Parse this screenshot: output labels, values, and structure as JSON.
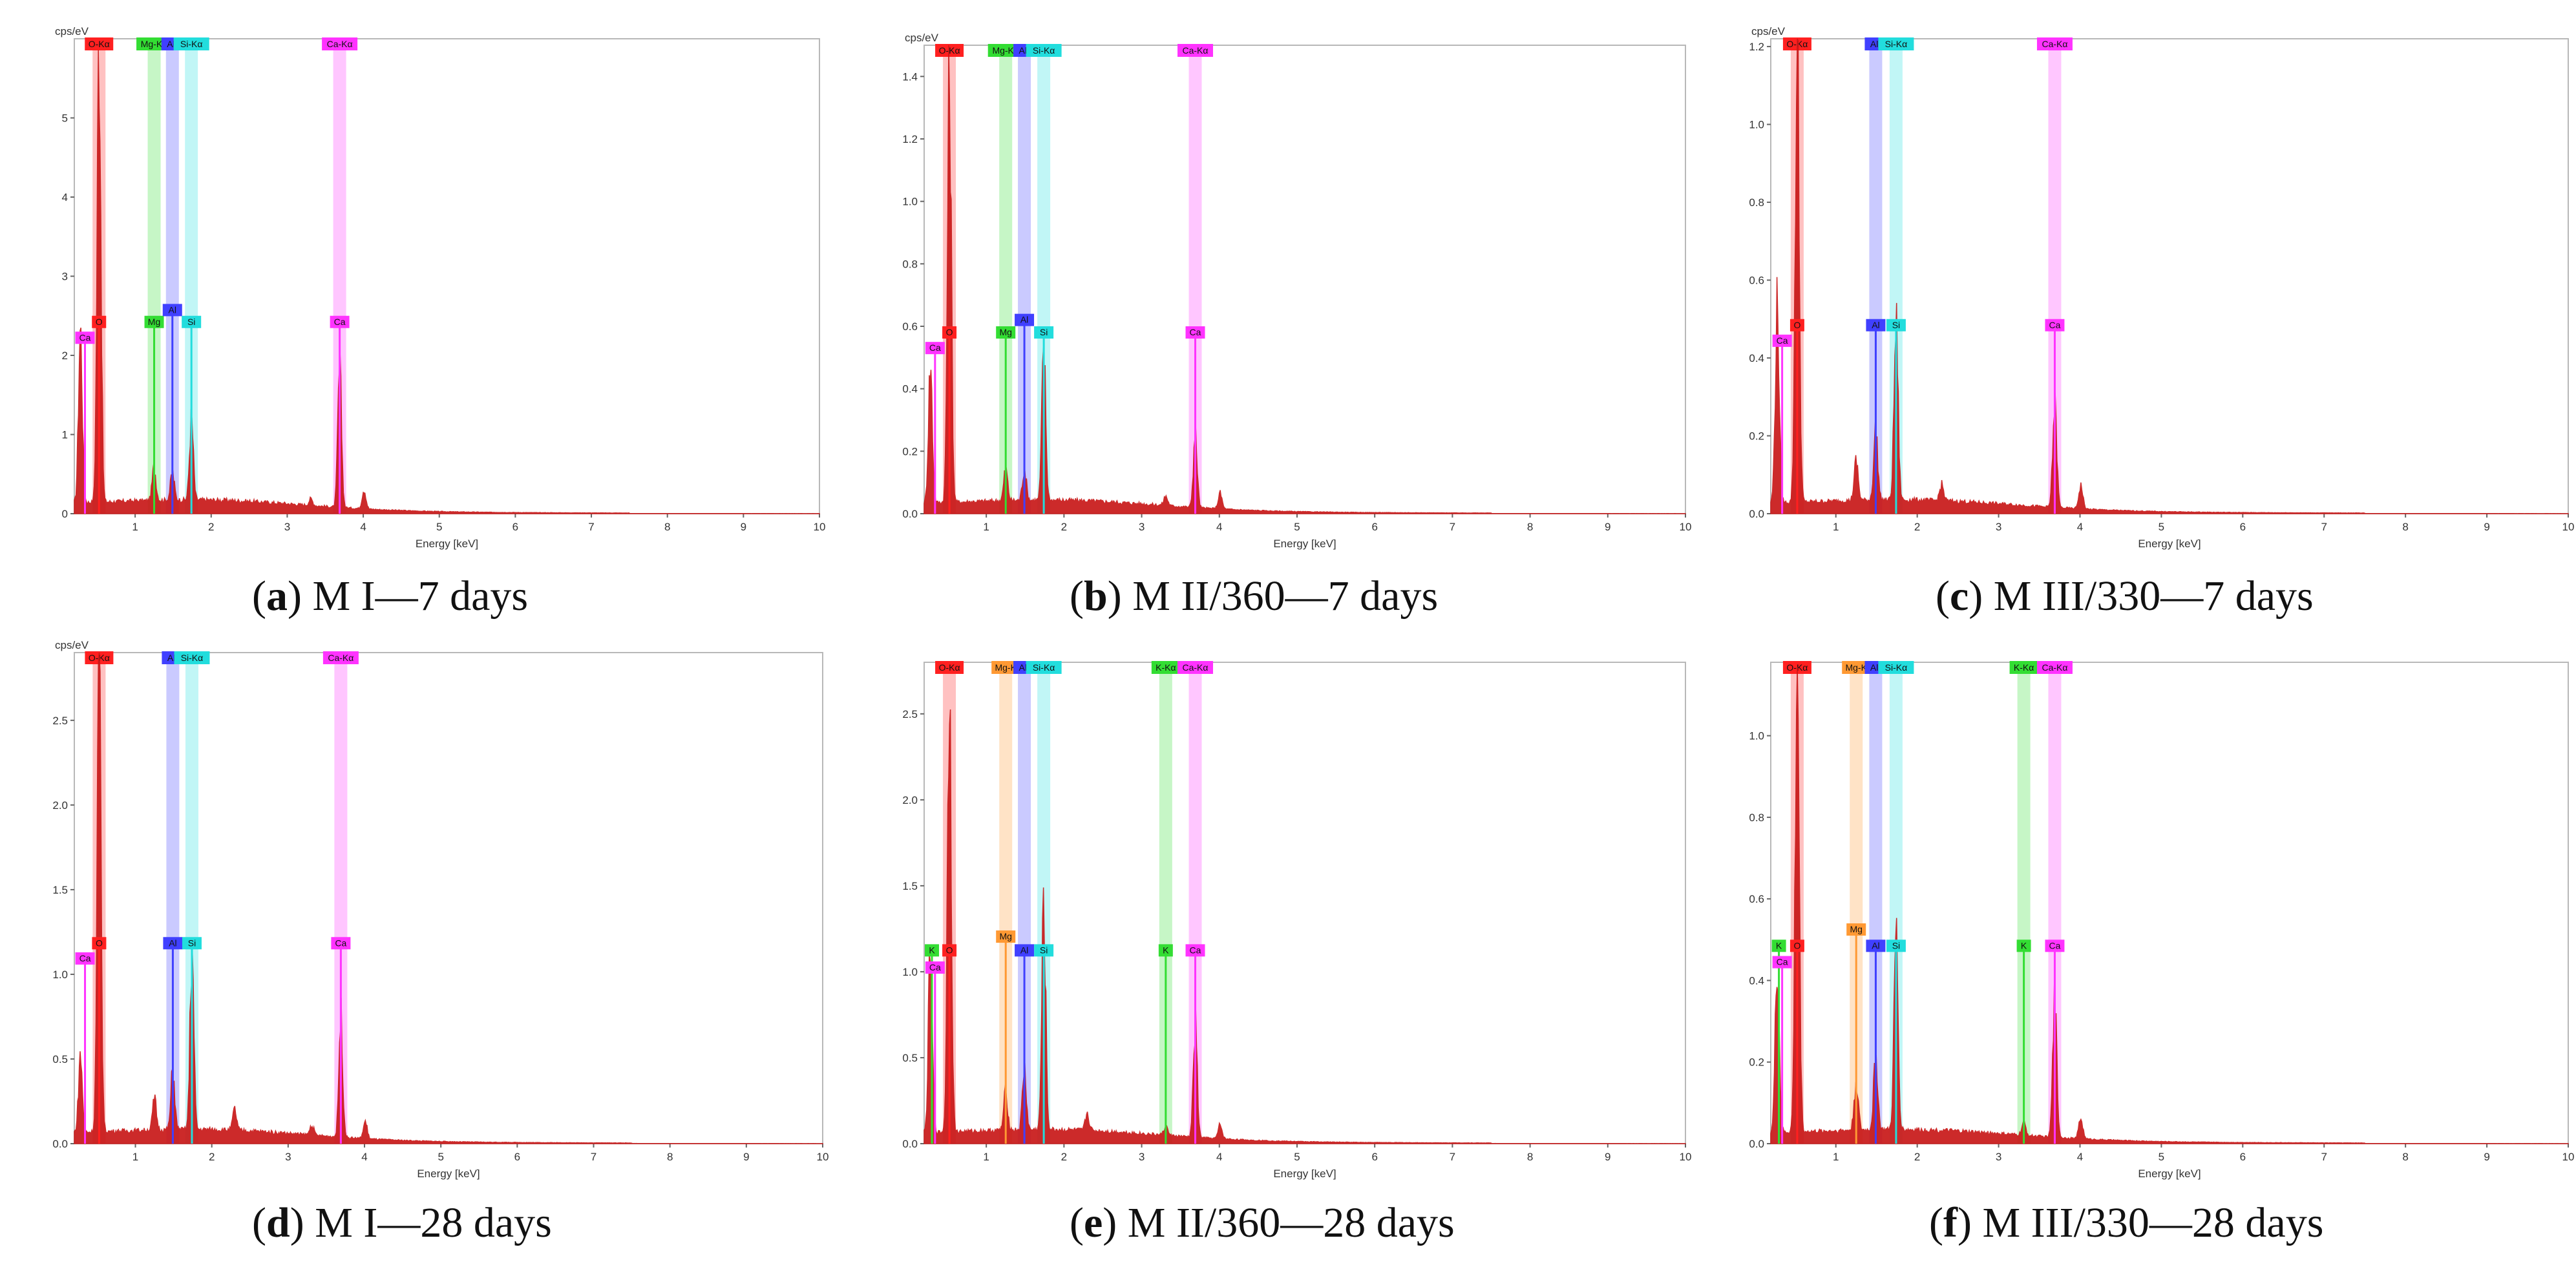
{
  "figure": {
    "colors": {
      "spectrum": "#c81818",
      "element_colors": {
        "O": "#ff2020",
        "C": "#ff33ff",
        "Ca": "#ff33ff",
        "Mg": "#33dd33",
        "Al": "#4040ff",
        "Si": "#22dddd",
        "K": "#33dd33",
        "Mg-orange": "#ff9933"
      }
    }
  },
  "chart_data": [
    {
      "id": "a",
      "type": "line",
      "ylabel": "cps/eV",
      "xlabel": "Energy [keV]",
      "xlim": [
        0.2,
        10
      ],
      "ylim": [
        0,
        6
      ],
      "xticks": [
        "1",
        "2",
        "3",
        "4",
        "5",
        "6",
        "7",
        "8",
        "9",
        "10"
      ],
      "yticks": [
        "0",
        "1",
        "2",
        "3",
        "4",
        "5"
      ],
      "caption": {
        "letter": "a",
        "text": "M I—7 days"
      },
      "series": [
        {
          "name": "spectrum",
          "peaks": [
            {
              "energy": 0.28,
              "height": 2.2
            },
            {
              "energy": 0.525,
              "height": 5.9
            },
            {
              "energy": 1.25,
              "height": 0.42
            },
            {
              "energy": 1.49,
              "height": 0.35
            },
            {
              "energy": 1.74,
              "height": 1.02
            },
            {
              "energy": 3.69,
              "height": 1.75
            },
            {
              "energy": 4.01,
              "height": 0.25
            },
            {
              "energy": 3.31,
              "height": 0.08
            }
          ]
        }
      ],
      "bands": [
        {
          "label": "O-Kα",
          "energy": 0.525,
          "color": "O"
        },
        {
          "label": "Mg-Kα",
          "energy": 1.25,
          "color": "Mg"
        },
        {
          "label": "Al-",
          "energy": 1.49,
          "color": "Al"
        },
        {
          "label": "Si-Kα",
          "energy": 1.74,
          "color": "Si"
        },
        {
          "label": "Ca-Kα",
          "energy": 3.69,
          "color": "Ca"
        }
      ],
      "markers": [
        {
          "label": "Ca",
          "energy": 0.34,
          "height": 2.3,
          "color": "Ca"
        },
        {
          "label": "O",
          "energy": 0.525,
          "height": 2.5,
          "color": "O"
        },
        {
          "label": "Mg",
          "energy": 1.25,
          "height": 2.5,
          "color": "Mg"
        },
        {
          "label": "Al",
          "energy": 1.49,
          "height": 2.65,
          "color": "Al"
        },
        {
          "label": "Si",
          "energy": 1.74,
          "height": 2.5,
          "color": "Si"
        },
        {
          "label": "Ca",
          "energy": 3.69,
          "height": 2.5,
          "color": "Ca"
        }
      ]
    },
    {
      "id": "b",
      "type": "line",
      "ylabel": "cps/eV",
      "xlabel": "Energy [keV]",
      "xlim": [
        0.2,
        10
      ],
      "ylim": [
        0,
        1.5
      ],
      "xticks": [
        "1",
        "2",
        "3",
        "4",
        "5",
        "6",
        "7",
        "8",
        "9",
        "10"
      ],
      "yticks": [
        "0.0",
        "0.2",
        "0.4",
        "0.6",
        "0.8",
        "1.0",
        "1.2",
        "1.4"
      ],
      "caption": {
        "letter": "b",
        "text": "M II/360—7 days"
      },
      "series": [
        {
          "name": "spectrum",
          "peaks": [
            {
              "energy": 0.28,
              "height": 0.44
            },
            {
              "energy": 0.525,
              "height": 1.36
            },
            {
              "energy": 1.25,
              "height": 0.1
            },
            {
              "energy": 1.49,
              "height": 0.1
            },
            {
              "energy": 1.74,
              "height": 0.48
            },
            {
              "energy": 3.69,
              "height": 0.23
            },
            {
              "energy": 4.01,
              "height": 0.05
            },
            {
              "energy": 3.31,
              "height": 0.03
            }
          ]
        }
      ],
      "bands": [
        {
          "label": "O-Kα",
          "energy": 0.525,
          "color": "O"
        },
        {
          "label": "Mg-Kα",
          "energy": 1.25,
          "color": "Mg"
        },
        {
          "label": "Al-",
          "energy": 1.49,
          "color": "Al"
        },
        {
          "label": "Si-Kα",
          "energy": 1.74,
          "color": "Si"
        },
        {
          "label": "Ca-Kα",
          "energy": 3.69,
          "color": "Ca"
        }
      ],
      "markers": [
        {
          "label": "Ca",
          "energy": 0.34,
          "height": 0.55,
          "color": "Ca"
        },
        {
          "label": "O",
          "energy": 0.525,
          "height": 0.6,
          "color": "O"
        },
        {
          "label": "Mg",
          "energy": 1.25,
          "height": 0.6,
          "color": "Mg"
        },
        {
          "label": "Al",
          "energy": 1.49,
          "height": 0.64,
          "color": "Al"
        },
        {
          "label": "Si",
          "energy": 1.74,
          "height": 0.6,
          "color": "Si"
        },
        {
          "label": "Ca",
          "energy": 3.69,
          "height": 0.6,
          "color": "Ca"
        }
      ]
    },
    {
      "id": "c",
      "type": "line",
      "ylabel": "cps/eV",
      "xlabel": "Energy [keV]",
      "xlim": [
        0.2,
        10
      ],
      "ylim": [
        0,
        1.22
      ],
      "xticks": [
        "1",
        "2",
        "3",
        "4",
        "5",
        "6",
        "7",
        "8",
        "9",
        "10"
      ],
      "yticks": [
        "0.0",
        "0.2",
        "0.4",
        "0.6",
        "0.8",
        "1.0",
        "1.2"
      ],
      "caption": {
        "letter": "c",
        "text": "M III/330—7 days"
      },
      "series": [
        {
          "name": "spectrum",
          "peaks": [
            {
              "energy": 0.28,
              "height": 0.5
            },
            {
              "energy": 0.525,
              "height": 1.17
            },
            {
              "energy": 1.25,
              "height": 0.1
            },
            {
              "energy": 1.49,
              "height": 0.18
            },
            {
              "energy": 1.74,
              "height": 0.45
            },
            {
              "energy": 3.69,
              "height": 0.26
            },
            {
              "energy": 4.01,
              "height": 0.06
            },
            {
              "energy": 2.3,
              "height": 0.04
            }
          ]
        }
      ],
      "bands": [
        {
          "label": "O-Kα",
          "energy": 0.525,
          "color": "O"
        },
        {
          "label": "Al-",
          "energy": 1.49,
          "color": "Al"
        },
        {
          "label": "Si-Kα",
          "energy": 1.74,
          "color": "Si"
        },
        {
          "label": "Ca-Kα",
          "energy": 3.69,
          "color": "Ca"
        }
      ],
      "markers": [
        {
          "label": "Ca",
          "energy": 0.34,
          "height": 0.46,
          "color": "Ca"
        },
        {
          "label": "O",
          "energy": 0.525,
          "height": 0.5,
          "color": "O"
        },
        {
          "label": "Al",
          "energy": 1.49,
          "height": 0.5,
          "color": "Al"
        },
        {
          "label": "Si",
          "energy": 1.74,
          "height": 0.5,
          "color": "Si"
        },
        {
          "label": "Ca",
          "energy": 3.69,
          "height": 0.5,
          "color": "Ca"
        }
      ]
    },
    {
      "id": "d",
      "type": "line",
      "ylabel": "cps/eV",
      "xlabel": "Energy [keV]",
      "xlim": [
        0.2,
        10
      ],
      "ylim": [
        0,
        2.9
      ],
      "xticks": [
        "1",
        "2",
        "3",
        "4",
        "5",
        "6",
        "7",
        "8",
        "9",
        "10"
      ],
      "yticks": [
        "0.0",
        "0.5",
        "1.0",
        "1.5",
        "2.0",
        "2.5"
      ],
      "caption": {
        "letter": "d",
        "text": "M I—28 days"
      },
      "series": [
        {
          "name": "spectrum",
          "peaks": [
            {
              "energy": 0.28,
              "height": 0.45
            },
            {
              "energy": 0.525,
              "height": 2.8
            },
            {
              "energy": 1.25,
              "height": 0.18
            },
            {
              "energy": 1.49,
              "height": 0.35
            },
            {
              "energy": 1.74,
              "height": 1.05
            },
            {
              "energy": 3.69,
              "height": 0.72
            },
            {
              "energy": 4.01,
              "height": 0.1
            },
            {
              "energy": 2.3,
              "height": 0.12
            },
            {
              "energy": 3.31,
              "height": 0.06
            }
          ]
        }
      ],
      "bands": [
        {
          "label": "O-Kα",
          "energy": 0.525,
          "color": "O"
        },
        {
          "label": "Al-",
          "energy": 1.49,
          "color": "Al"
        },
        {
          "label": "Si-Kα",
          "energy": 1.74,
          "color": "Si"
        },
        {
          "label": "Ca-Kα",
          "energy": 3.69,
          "color": "Ca"
        }
      ],
      "markers": [
        {
          "label": "Ca",
          "energy": 0.34,
          "height": 1.13,
          "color": "Ca"
        },
        {
          "label": "O",
          "energy": 0.525,
          "height": 1.22,
          "color": "O"
        },
        {
          "label": "Al",
          "energy": 1.49,
          "height": 1.22,
          "color": "Al"
        },
        {
          "label": "Si",
          "energy": 1.74,
          "height": 1.22,
          "color": "Si"
        },
        {
          "label": "Ca",
          "energy": 3.69,
          "height": 1.22,
          "color": "Ca"
        }
      ]
    },
    {
      "id": "e",
      "type": "line",
      "ylabel": "",
      "xlabel": "Energy [keV]",
      "xlim": [
        0.2,
        10
      ],
      "ylim": [
        0,
        2.8
      ],
      "xticks": [
        "1",
        "2",
        "3",
        "4",
        "5",
        "6",
        "7",
        "8",
        "9",
        "10"
      ],
      "yticks": [
        "0.0",
        "0.5",
        "1.0",
        "1.5",
        "2.0",
        "2.5"
      ],
      "caption": {
        "letter": "e",
        "text": "M II/360—28 days"
      },
      "series": [
        {
          "name": "spectrum",
          "peaks": [
            {
              "energy": 0.28,
              "height": 1.05
            },
            {
              "energy": 0.525,
              "height": 2.65
            },
            {
              "energy": 1.25,
              "height": 0.22
            },
            {
              "energy": 1.49,
              "height": 0.35
            },
            {
              "energy": 1.74,
              "height": 1.28
            },
            {
              "energy": 3.69,
              "height": 0.65
            },
            {
              "energy": 4.01,
              "height": 0.08
            },
            {
              "energy": 3.31,
              "height": 0.05
            },
            {
              "energy": 2.3,
              "height": 0.1
            }
          ]
        }
      ],
      "bands": [
        {
          "label": "O-Kα",
          "energy": 0.525,
          "color": "O"
        },
        {
          "label": "Mg-K",
          "energy": 1.25,
          "color": "Mg-orange"
        },
        {
          "label": "Al-",
          "energy": 1.49,
          "color": "Al"
        },
        {
          "label": "Si-Kα",
          "energy": 1.74,
          "color": "Si"
        },
        {
          "label": "K-Kα",
          "energy": 3.31,
          "color": "K"
        },
        {
          "label": "Ca-Kα",
          "energy": 3.69,
          "color": "Ca"
        }
      ],
      "markers": [
        {
          "label": "K",
          "energy": 0.3,
          "height": 1.16,
          "color": "K"
        },
        {
          "label": "Ca",
          "energy": 0.34,
          "height": 1.06,
          "color": "Ca"
        },
        {
          "label": "O",
          "energy": 0.525,
          "height": 1.16,
          "color": "O"
        },
        {
          "label": "Mg",
          "energy": 1.25,
          "height": 1.24,
          "color": "Mg-orange"
        },
        {
          "label": "Al",
          "energy": 1.49,
          "height": 1.16,
          "color": "Al"
        },
        {
          "label": "Si",
          "energy": 1.74,
          "height": 1.16,
          "color": "Si"
        },
        {
          "label": "K",
          "energy": 3.31,
          "height": 1.16,
          "color": "K"
        },
        {
          "label": "Ca",
          "energy": 3.69,
          "height": 1.16,
          "color": "Ca"
        }
      ]
    },
    {
      "id": "f",
      "type": "line",
      "ylabel": "",
      "xlabel": "Energy [keV]",
      "xlim": [
        0.2,
        10
      ],
      "ylim": [
        0,
        1.18
      ],
      "xticks": [
        "1",
        "2",
        "3",
        "4",
        "5",
        "6",
        "7",
        "8",
        "9",
        "10"
      ],
      "yticks": [
        "0.0",
        "0.2",
        "0.4",
        "0.6",
        "0.8",
        "1.0"
      ],
      "caption": {
        "letter": "f",
        "text": "M III/330—28 days"
      },
      "series": [
        {
          "name": "spectrum",
          "peaks": [
            {
              "energy": 0.28,
              "height": 0.42
            },
            {
              "energy": 0.525,
              "height": 1.14
            },
            {
              "energy": 1.25,
              "height": 0.12
            },
            {
              "energy": 1.49,
              "height": 0.18
            },
            {
              "energy": 1.74,
              "height": 0.47
            },
            {
              "energy": 3.69,
              "height": 0.33
            },
            {
              "energy": 4.01,
              "height": 0.05
            },
            {
              "energy": 3.31,
              "height": 0.03
            }
          ]
        }
      ],
      "bands": [
        {
          "label": "O-Kα",
          "energy": 0.525,
          "color": "O"
        },
        {
          "label": "Mg-K",
          "energy": 1.25,
          "color": "Mg-orange"
        },
        {
          "label": "Al-",
          "energy": 1.49,
          "color": "Al"
        },
        {
          "label": "Si-Kα",
          "energy": 1.74,
          "color": "Si"
        },
        {
          "label": "K-Kα",
          "energy": 3.31,
          "color": "K"
        },
        {
          "label": "Ca-Kα",
          "energy": 3.69,
          "color": "Ca"
        }
      ],
      "markers": [
        {
          "label": "K",
          "energy": 0.3,
          "height": 0.5,
          "color": "K"
        },
        {
          "label": "Ca",
          "energy": 0.34,
          "height": 0.46,
          "color": "Ca"
        },
        {
          "label": "O",
          "energy": 0.525,
          "height": 0.5,
          "color": "O"
        },
        {
          "label": "Mg",
          "energy": 1.25,
          "height": 0.54,
          "color": "Mg-orange"
        },
        {
          "label": "Al",
          "energy": 1.49,
          "height": 0.5,
          "color": "Al"
        },
        {
          "label": "Si",
          "energy": 1.74,
          "height": 0.5,
          "color": "Si"
        },
        {
          "label": "K",
          "energy": 3.31,
          "height": 0.5,
          "color": "K"
        },
        {
          "label": "Ca",
          "energy": 3.69,
          "height": 0.5,
          "color": "Ca"
        }
      ]
    }
  ]
}
